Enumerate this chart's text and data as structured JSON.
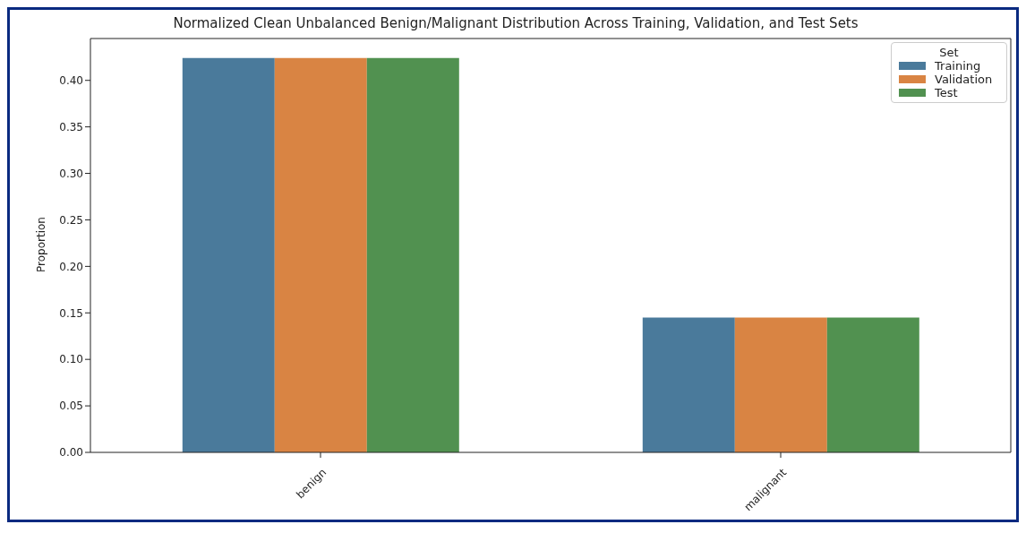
{
  "chart_data": {
    "type": "bar",
    "title": "Normalized Clean Unbalanced Benign/Malignant Distribution Across Training, Validation, and Test Sets",
    "ylabel": "Proportion",
    "categories": [
      "benign",
      "malignant"
    ],
    "series": [
      {
        "name": "Training",
        "color": "#4a7a9b",
        "values": [
          0.424,
          0.145
        ]
      },
      {
        "name": "Validation",
        "color": "#d98443",
        "values": [
          0.424,
          0.145
        ]
      },
      {
        "name": "Test",
        "color": "#519150",
        "values": [
          0.424,
          0.145
        ]
      }
    ],
    "legend_title": "Set",
    "legend": "top right",
    "ylim": [
      0,
      0.445
    ],
    "yticks": [
      {
        "value": 0,
        "label": "0.00"
      },
      {
        "value": 0.05,
        "label": "0.05"
      },
      {
        "value": 0.1,
        "label": "0.10"
      },
      {
        "value": 0.15,
        "label": "0.15"
      },
      {
        "value": 0.2,
        "label": "0.20"
      },
      {
        "value": 0.25,
        "label": "0.25"
      },
      {
        "value": 0.3,
        "label": "0.30"
      },
      {
        "value": 0.35,
        "label": "0.35"
      },
      {
        "value": 0.4,
        "label": "0.40"
      }
    ],
    "grid": false
  }
}
